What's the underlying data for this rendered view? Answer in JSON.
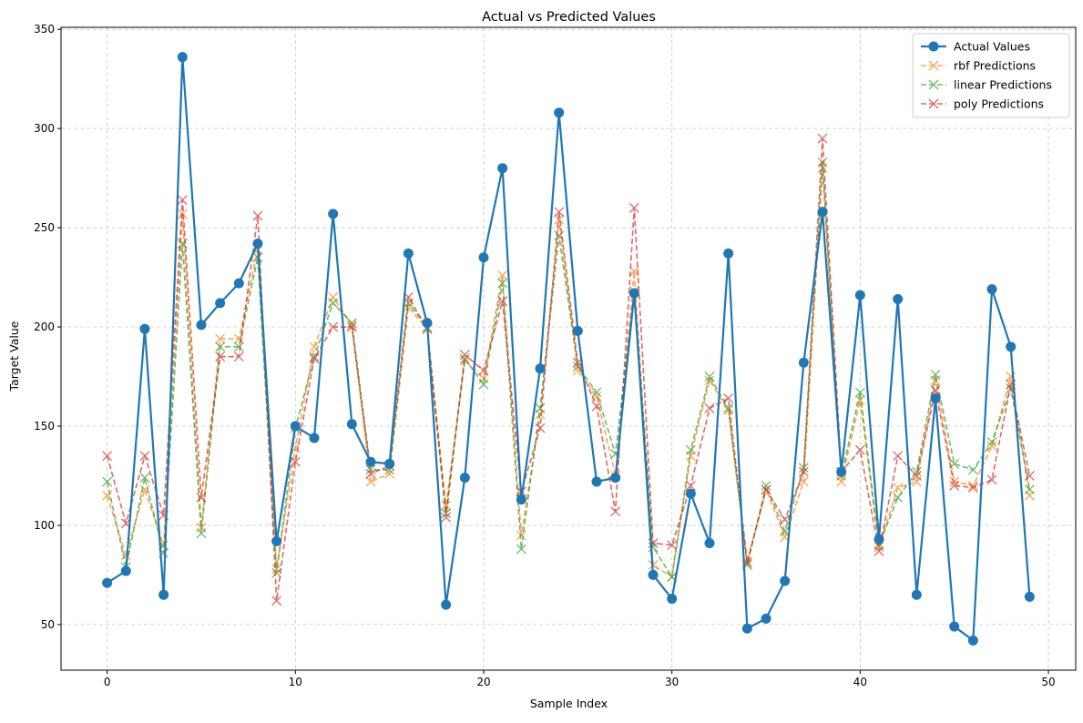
{
  "chart_data": {
    "type": "line",
    "title": "Actual vs Predicted Values",
    "xlabel": "Sample Index",
    "ylabel": "Target Value",
    "xlim": [
      -2.45,
      51.45
    ],
    "ylim": [
      27,
      351
    ],
    "xticks": [
      0,
      10,
      20,
      30,
      40,
      50
    ],
    "yticks": [
      50,
      100,
      150,
      200,
      250,
      300,
      350
    ],
    "grid": true,
    "legend_position": "top-right",
    "x": [
      0,
      1,
      2,
      3,
      4,
      5,
      6,
      7,
      8,
      9,
      10,
      11,
      12,
      13,
      14,
      15,
      16,
      17,
      18,
      19,
      20,
      21,
      22,
      23,
      24,
      25,
      26,
      27,
      28,
      29,
      30,
      31,
      32,
      33,
      34,
      35,
      36,
      37,
      38,
      39,
      40,
      41,
      42,
      43,
      44,
      45,
      46,
      47,
      48,
      49
    ],
    "series": [
      {
        "name": "Actual Values",
        "color": "#1f77b4",
        "marker": "circle",
        "style": "solid",
        "values": [
          71,
          77,
          199,
          65,
          336,
          201,
          212,
          222,
          242,
          92,
          150,
          144,
          257,
          151,
          132,
          131,
          237,
          202,
          60,
          124,
          235,
          280,
          113,
          179,
          308,
          198,
          122,
          124,
          217,
          75,
          63,
          116,
          91,
          237,
          48,
          53,
          72,
          182,
          258,
          127,
          216,
          93,
          214,
          65,
          164,
          49,
          42,
          219,
          190,
          64
        ]
      },
      {
        "name": "rbf Predictions",
        "color": "#ff7f0e",
        "marker": "x",
        "style": "dashed",
        "values": [
          115,
          85,
          118,
          90,
          257,
          99,
          194,
          194,
          239,
          78,
          139,
          190,
          215,
          201,
          122,
          126,
          210,
          199,
          110,
          183,
          174,
          226,
          95,
          156,
          254,
          178,
          165,
          125,
          228,
          80,
          74,
          135,
          173,
          158,
          82,
          118,
          94,
          122,
          280,
          122,
          163,
          89,
          119,
          122,
          173,
          122,
          120,
          140,
          175,
          115
        ]
      },
      {
        "name": "linear Predictions",
        "color": "#2ca02c",
        "marker": "x",
        "style": "dashed",
        "values": [
          122,
          79,
          124,
          86,
          242,
          96,
          190,
          190,
          235,
          76,
          149,
          185,
          212,
          202,
          128,
          128,
          212,
          200,
          106,
          184,
          171,
          222,
          88,
          159,
          246,
          180,
          167,
          136,
          218,
          89,
          74,
          138,
          175,
          159,
          80,
          120,
          97,
          129,
          283,
          125,
          167,
          90,
          114,
          127,
          176,
          131,
          128,
          142,
          169,
          118
        ]
      },
      {
        "name": "poly Predictions",
        "color": "#d62728",
        "marker": "x",
        "style": "dashed",
        "values": [
          135,
          101,
          135,
          105,
          264,
          114,
          185,
          185,
          256,
          62,
          132,
          184,
          200,
          200,
          126,
          130,
          215,
          199,
          104,
          186,
          178,
          213,
          117,
          149,
          258,
          182,
          160,
          107,
          260,
          91,
          90,
          120,
          159,
          164,
          81,
          118,
          103,
          127,
          295,
          127,
          138,
          87,
          135,
          125,
          168,
          120,
          119,
          123,
          171,
          125
        ]
      }
    ]
  }
}
